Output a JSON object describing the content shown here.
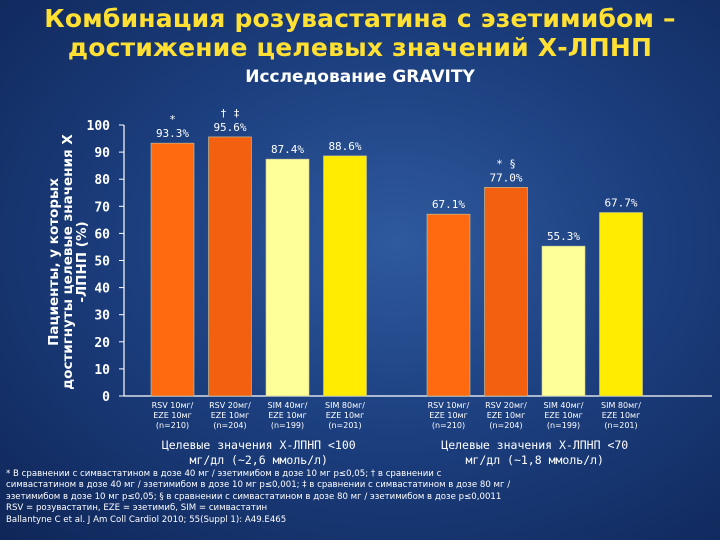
{
  "title_line1": "Комбинация розувастатина с эзетимибом –",
  "title_line2": "достижение целевых значений Х-ЛПНП",
  "subtitle": "Исследование GRAVITY",
  "chart_data": {
    "type": "bar",
    "ylabel_line1": "Пациенты, у которых",
    "ylabel_line2": "достигнуты целевые значения Х",
    "ylabel_line3": "-ЛПНП (%)",
    "ylim": [
      0,
      100
    ],
    "yticks": [
      0,
      10,
      20,
      30,
      40,
      50,
      60,
      70,
      80,
      90,
      100
    ],
    "grid": false,
    "colors": {
      "rsv10": "#ff6a10",
      "rsv20": "#f26010",
      "sim40": "#ffff99",
      "sim80": "#ffec00"
    },
    "groups": [
      {
        "label_line1": "Целевые значения Х-ЛПНП <100",
        "label_line2": "мг/дл (~2,6 ммоль/л)",
        "bars": [
          {
            "key": "rsv10",
            "value": 93.3,
            "value_label": "93.3%",
            "mark": "*",
            "cat_line1": "RSV 10мг/",
            "cat_line2": "EZE 10мг",
            "cat_line3": "(n=210)"
          },
          {
            "key": "rsv20",
            "value": 95.6,
            "value_label": "95.6%",
            "mark": "† ‡",
            "cat_line1": "RSV 20мг/",
            "cat_line2": "EZE 10мг",
            "cat_line3": "(n=204)"
          },
          {
            "key": "sim40",
            "value": 87.4,
            "value_label": "87.4%",
            "mark": "",
            "cat_line1": "SIM 40мг/",
            "cat_line2": "EZE 10мг",
            "cat_line3": "(n=199)"
          },
          {
            "key": "sim80",
            "value": 88.6,
            "value_label": "88.6%",
            "mark": "",
            "cat_line1": "SIM 80мг/",
            "cat_line2": "EZE 10мг",
            "cat_line3": "(n=201)"
          }
        ]
      },
      {
        "label_line1": "Целевые значения Х-ЛПНП <70",
        "label_line2": "мг/дл (~1,8 ммоль/л)",
        "bars": [
          {
            "key": "rsv10",
            "value": 67.1,
            "value_label": "67.1%",
            "mark": "",
            "cat_line1": "RSV 10мг/",
            "cat_line2": "EZE 10мг",
            "cat_line3": "(n=210)"
          },
          {
            "key": "rsv20",
            "value": 77.0,
            "value_label": "77.0%",
            "mark": "* §",
            "cat_line1": "RSV 20мг/",
            "cat_line2": "EZE 10мг",
            "cat_line3": "(n=204)"
          },
          {
            "key": "sim40",
            "value": 55.3,
            "value_label": "55.3%",
            "mark": "",
            "cat_line1": "SIM 40мг/",
            "cat_line2": "EZE 10мг",
            "cat_line3": "(n=199)"
          },
          {
            "key": "sim80",
            "value": 67.7,
            "value_label": "67.7%",
            "mark": "",
            "cat_line1": "SIM 80мг/",
            "cat_line2": "EZE 10мг",
            "cat_line3": "(n=201)"
          }
        ]
      }
    ]
  },
  "footnotes": {
    "line1": "* В сравнении с симвастатином  в дозе 40 мг / эзетимибом в дозе 10 мг p≤0,05; † в сравнении с",
    "line2": "симвастатином в дозе 40 мг / эзетимибом в дозе 10 мг p≤0,001; ‡ в сравнении с симвастатином в дозе 80 мг /",
    "line3": "эзетимибом в дозе 10 мг p≤0,05; § в сравнении с симвастатином в дозе 80 мг / эзетимибом в дозе p≤0,0011",
    "line4": "RSV = розувастатин, EZE = эзетимиб, SIM = симвастатин",
    "line5": "Ballantyne C et al. J Am Coll Cardiol 2010; 55(Suppl 1): A49.E465"
  }
}
